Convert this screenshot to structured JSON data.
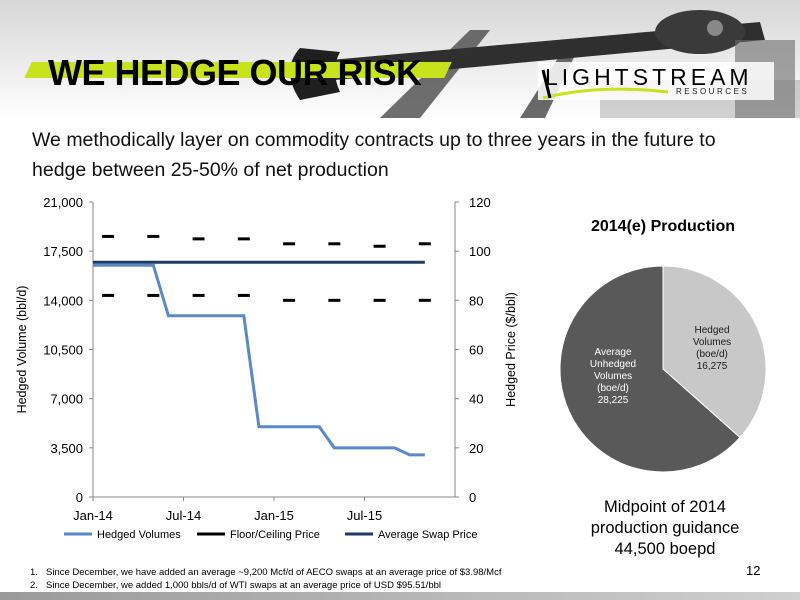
{
  "slide": {
    "title": "WE HEDGE OUR RISK",
    "subtitle": "We methodically layer on commodity contracts up to three years in the future to hedge between 25-50% of net production",
    "page_number": "12"
  },
  "logo": {
    "name": "LIGHTSTREAM",
    "sub": "RESOURCES"
  },
  "colors": {
    "accent": "#c8e21e",
    "hedged_line": "#5a8ac6",
    "swap_line": "#1f3a5f",
    "floor_line": "#000000",
    "pie_dark": "#595959",
    "pie_light": "#c8c8c8"
  },
  "chart_data": [
    {
      "type": "line",
      "x_ticks": [
        "Jan-14",
        "Jul-14",
        "Jan-15",
        "Jul-15"
      ],
      "ylabel": "Hedged Volume (bbl/d)",
      "y2label": "Hedged Price ($/bbl)",
      "ylim": [
        0,
        21000
      ],
      "y_ticks": [
        "0",
        "3,500",
        "7,000",
        "10,500",
        "14,000",
        "17,500",
        "21,000"
      ],
      "y2lim": [
        0,
        120
      ],
      "y2_ticks": [
        "0",
        "20",
        "40",
        "60",
        "80",
        "100",
        "120"
      ],
      "x_months": [
        0,
        24
      ],
      "legend_position": "bottom",
      "series": [
        {
          "name": "Hedged Volumes",
          "axis": "left",
          "points": [
            [
              0,
              16500
            ],
            [
              4,
              16500
            ],
            [
              5,
              12900
            ],
            [
              10,
              12900
            ],
            [
              11,
              5000
            ],
            [
              15,
              5000
            ],
            [
              16,
              3500
            ],
            [
              20,
              3500
            ],
            [
              21,
              3000
            ],
            [
              22,
              3000
            ]
          ]
        },
        {
          "name": "Floor/Ceiling Price",
          "axis": "right",
          "markers": [
            {
              "month": 1,
              "floor": 82,
              "ceiling": 106
            },
            {
              "month": 4,
              "floor": 82,
              "ceiling": 106
            },
            {
              "month": 7,
              "floor": 82,
              "ceiling": 105
            },
            {
              "month": 10,
              "floor": 82,
              "ceiling": 105
            },
            {
              "month": 13,
              "floor": 80,
              "ceiling": 103
            },
            {
              "month": 16,
              "floor": 80,
              "ceiling": 103
            },
            {
              "month": 19,
              "floor": 80,
              "ceiling": 102
            },
            {
              "month": 22,
              "floor": 80,
              "ceiling": 103
            }
          ]
        },
        {
          "name": "Average Swap Price",
          "axis": "right",
          "points": [
            [
              0,
              95.5
            ],
            [
              22,
              95.5
            ]
          ]
        }
      ]
    },
    {
      "type": "pie",
      "title": "2014(e) Production",
      "slices": [
        {
          "label_lines": [
            "Hedged",
            "Volumes",
            "(boe/d)",
            "16,275"
          ],
          "value": 16275,
          "color": "#c8c8c8"
        },
        {
          "label_lines": [
            "Average",
            "Unhedged",
            "Volumes",
            "(boe/d)",
            "28,225"
          ],
          "value": 28225,
          "color": "#595959"
        }
      ]
    }
  ],
  "guidance": {
    "line1": "Midpoint of 2014",
    "line2": "production guidance",
    "line3": "44,500 boepd"
  },
  "footnotes": [
    {
      "num": "1.",
      "text": "Since December, we have added an average ~9,200 Mcf/d of AECO swaps at an average price of $3.98/Mcf"
    },
    {
      "num": "2.",
      "text": "Since December, we added 1,000 bbls/d of WTI swaps at an average price of  USD $95.51/bbl"
    }
  ]
}
